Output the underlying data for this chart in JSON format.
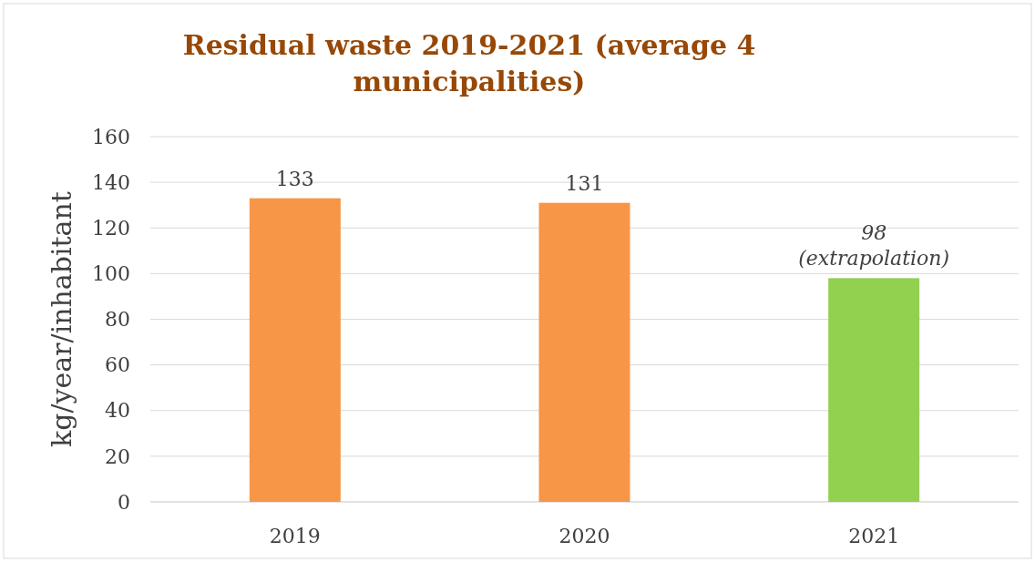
{
  "chart_data": {
    "type": "bar",
    "title": "Residual waste 2019-2021 (average 4\nmunicipalities)",
    "ylabel": "kg/year/inhabitant",
    "categories": [
      "2019",
      "2020",
      "2021"
    ],
    "values": [
      133,
      131,
      98
    ],
    "colors": [
      "#f79646",
      "#f79646",
      "#92d050"
    ],
    "value_labels": [
      "133",
      "131",
      "98\n(extrapolation)"
    ],
    "ylim": [
      0,
      160
    ],
    "yticks": [
      0,
      20,
      40,
      60,
      80,
      100,
      120,
      140,
      160
    ],
    "grid": "y"
  }
}
